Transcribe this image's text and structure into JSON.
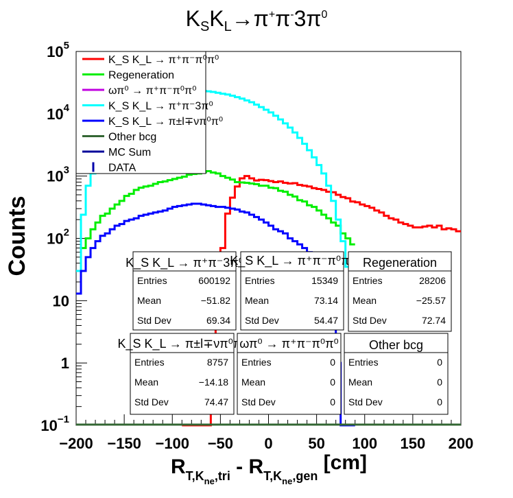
{
  "chart_data": {
    "type": "histogram",
    "title": "K_S K_L → π⁺π⁻3π⁰",
    "ylabel": "Counts",
    "xlabel": "R_T,K_ne,tri - R_T,K_ne,gen [cm]",
    "xlim": [
      -200,
      200
    ],
    "ylim": [
      0.1,
      100000
    ],
    "log_y": true,
    "grid": false,
    "legend_position": "top-left",
    "x_ticks": [
      "−200",
      "−150",
      "−100",
      "−50",
      "0",
      "50",
      "100",
      "150",
      "200"
    ],
    "y_ticks": [
      {
        "base": "10",
        "exp": "−1",
        "value": 0.1
      },
      {
        "base": "1",
        "exp": "",
        "value": 1
      },
      {
        "base": "10",
        "exp": "",
        "value": 10
      },
      {
        "base": "10",
        "exp": "2",
        "value": 100
      },
      {
        "base": "10",
        "exp": "3",
        "value": 1000
      },
      {
        "base": "10",
        "exp": "4",
        "value": 10000
      },
      {
        "base": "10",
        "exp": "5",
        "value": 100000
      }
    ],
    "series": [
      {
        "name": "K_S K_L → π⁺π⁻π⁰π⁰",
        "color": "#ff0000",
        "bin_width": 5,
        "edges_start": -90,
        "values": [
          0.1,
          0.1,
          0.1,
          0.1,
          0.1,
          0.1,
          1,
          10,
          70,
          250,
          450,
          680,
          920,
          1000,
          920,
          850,
          870,
          860,
          830,
          800,
          820,
          780,
          760,
          770,
          720,
          700,
          680,
          640,
          620,
          600,
          560,
          550,
          500,
          460,
          440,
          390,
          380,
          350,
          330,
          310,
          280,
          260,
          230,
          210,
          200,
          180,
          170,
          160,
          150,
          150,
          155,
          160,
          150,
          160,
          140,
          145,
          140,
          130
        ]
      },
      {
        "name": "Regeneration",
        "color": "#00ee00",
        "bin_width": 5,
        "edges_start": -200,
        "values": [
          30,
          70,
          100,
          140,
          180,
          230,
          250,
          300,
          350,
          400,
          480,
          520,
          600,
          650,
          680,
          700,
          750,
          800,
          820,
          860,
          900,
          940,
          980,
          1050,
          1080,
          1100,
          1150,
          1200,
          1140,
          1100,
          1000,
          940,
          880,
          800,
          790,
          780,
          760,
          740,
          700,
          700,
          650,
          640,
          580,
          560,
          500,
          470,
          410,
          390,
          340,
          320,
          280,
          240,
          210,
          180,
          160,
          120,
          100,
          80
        ]
      },
      {
        "name": "ωπ⁰ → π⁺π⁻π⁰π⁰",
        "color": "#c000e0",
        "values": []
      },
      {
        "name": "K_S K_L → π⁺π⁻3π⁰",
        "color": "#00ffff",
        "bin_width": 5,
        "edges_start": -200,
        "values": [
          30,
          240,
          700,
          1100,
          1900,
          2700,
          3600,
          4600,
          5800,
          7200,
          8500,
          10200,
          11500,
          13200,
          14500,
          16000,
          17200,
          18400,
          19500,
          20400,
          21000,
          21800,
          22300,
          22700,
          23000,
          23300,
          23200,
          22900,
          22400,
          21700,
          21000,
          20400,
          19500,
          18500,
          17500,
          16400,
          15300,
          14000,
          12800,
          11600,
          10500,
          9300,
          8100,
          7000,
          6000,
          5000,
          4100,
          3300,
          2600,
          2000,
          1500,
          1100,
          700,
          400,
          200,
          90,
          35,
          30,
          30,
          30
        ]
      },
      {
        "name": "K_S K_L → π±l∓νπ⁰π⁰",
        "color": "#0000ff",
        "bin_width": 5,
        "edges_start": -200,
        "values": [
          13,
          30,
          50,
          70,
          90,
          110,
          120,
          140,
          160,
          170,
          190,
          200,
          210,
          230,
          240,
          250,
          260,
          270,
          280,
          300,
          320,
          330,
          340,
          350,
          360,
          360,
          350,
          340,
          330,
          320,
          320,
          310,
          300,
          290,
          270,
          260,
          240,
          220,
          200,
          180,
          160,
          140,
          130,
          120,
          100,
          90,
          80,
          70,
          60,
          50,
          45,
          35,
          25,
          15,
          1,
          0.1,
          0.1,
          0.1
        ]
      },
      {
        "name": "Other bcg",
        "color": "#336633",
        "values": []
      },
      {
        "name": "MC Sum",
        "color": "#000099",
        "values": []
      },
      {
        "name": "DATA",
        "color": "#0000aa",
        "values": []
      }
    ]
  },
  "stat_boxes": [
    {
      "title": "K_S K_L → π⁺π⁻3π⁰",
      "rows": [
        [
          "Entries",
          "600192"
        ],
        [
          "Mean",
          "−51.82"
        ],
        [
          "Std Dev",
          "69.34"
        ]
      ]
    },
    {
      "title": "K_S K_L → π⁺π⁻π⁰π⁰",
      "rows": [
        [
          "Entries",
          "15349"
        ],
        [
          "Mean",
          "73.14"
        ],
        [
          "Std Dev",
          "54.47"
        ]
      ]
    },
    {
      "title": "Regeneration",
      "rows": [
        [
          "Entries",
          "28206"
        ],
        [
          "Mean",
          "−25.57"
        ],
        [
          "Std Dev",
          "72.74"
        ]
      ]
    },
    {
      "title": "K_S K_L → π±l∓νπ⁰π⁰",
      "rows": [
        [
          "Entries",
          "8757"
        ],
        [
          "Mean",
          "−14.18"
        ],
        [
          "Std Dev",
          "74.47"
        ]
      ]
    },
    {
      "title": "ωπ⁰ → π⁺π⁻π⁰π⁰",
      "rows": [
        [
          "Entries",
          "0"
        ],
        [
          "Mean",
          "0"
        ],
        [
          "Std Dev",
          "0"
        ]
      ]
    },
    {
      "title": "Other bcg",
      "rows": [
        [
          "Entries",
          "0"
        ],
        [
          "Mean",
          "0"
        ],
        [
          "Std Dev",
          "0"
        ]
      ]
    }
  ]
}
